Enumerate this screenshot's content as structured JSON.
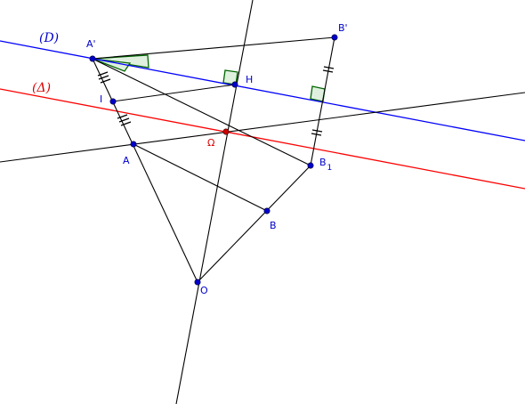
{
  "figure": {
    "lines": {
      "D": "(D)",
      "Delta": "(Δ)"
    },
    "points": {
      "A_prime": "A'",
      "B_prime": "B'",
      "H": "H",
      "I": "I",
      "Omega": "Ω",
      "A": "A",
      "B1": "B",
      "B1_sub": "1",
      "B": "B",
      "O": "O"
    }
  },
  "colors": {
    "line_D": "#0000ff",
    "line_Delta": "#ff0000",
    "segments": "#000000",
    "point_fill": "#0000cc",
    "omega_point": "#cc0000",
    "right_angle_stroke": "#006600",
    "angle_fill": "#dff0df"
  }
}
